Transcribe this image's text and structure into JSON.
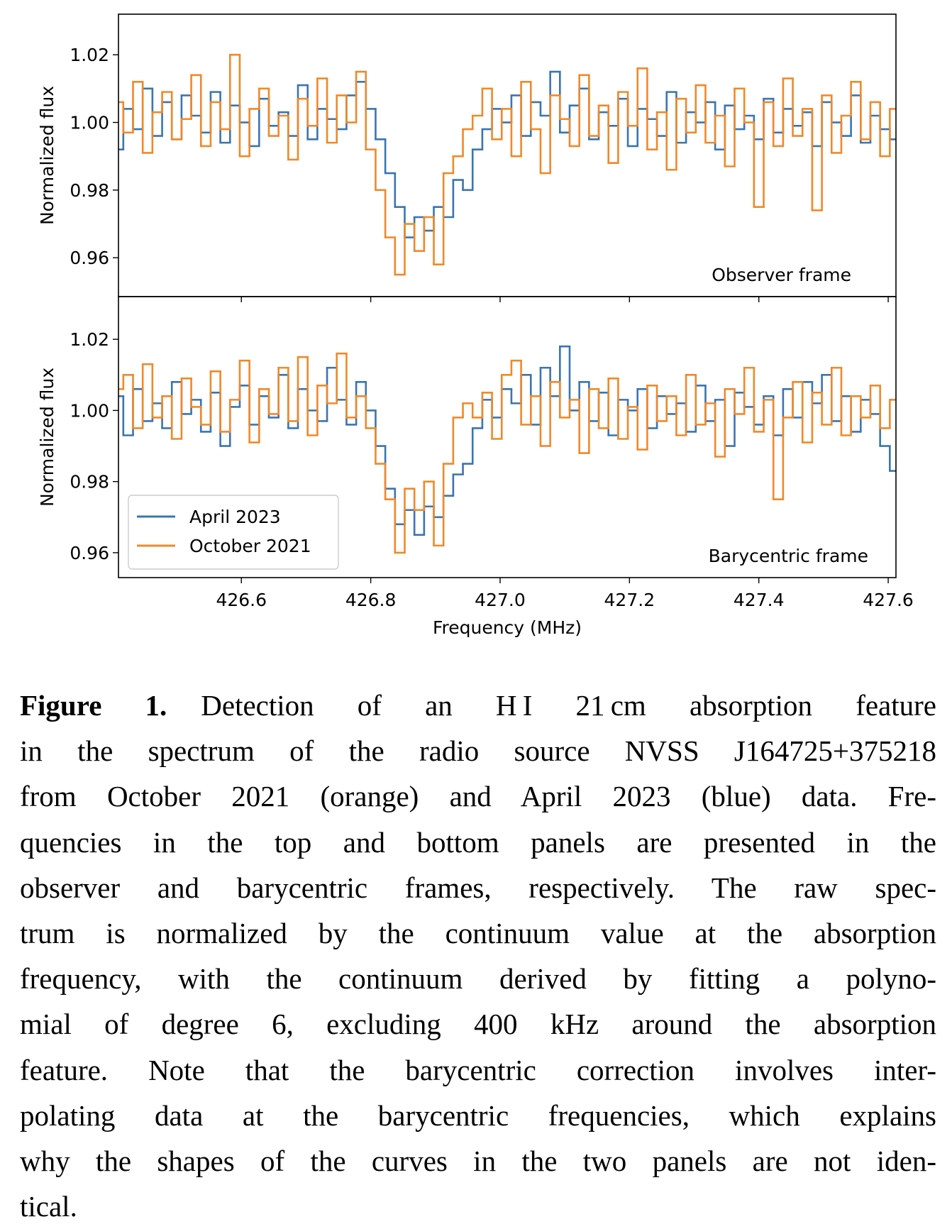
{
  "chart_data": [
    {
      "type": "line",
      "ylabel": "Normalized flux",
      "annotation": "Observer frame",
      "xlim": [
        426.41,
        427.612
      ],
      "ylim": [
        0.9485,
        1.032
      ],
      "xticks": [
        426.6,
        426.8,
        {
          "value": 427,
          "label": "427.0"
        },
        427.2,
        427.4,
        427.6
      ],
      "yticks": [
        0.96,
        0.98,
        {
          "value": 1,
          "label": "1.00"
        },
        1.02
      ],
      "x": [
        426.41,
        426.425,
        426.44,
        426.455,
        426.47,
        426.485,
        426.5,
        426.515,
        426.53,
        426.545,
        426.56,
        426.575,
        426.59,
        426.605,
        426.62,
        426.635,
        426.65,
        426.665,
        426.68,
        426.695,
        426.71,
        426.725,
        426.74,
        426.755,
        426.77,
        426.785,
        426.8,
        426.815,
        426.83,
        426.845,
        426.86,
        426.875,
        426.89,
        426.905,
        426.92,
        426.935,
        426.95,
        426.965,
        426.98,
        426.995,
        427.01,
        427.025,
        427.04,
        427.055,
        427.07,
        427.085,
        427.1,
        427.115,
        427.13,
        427.145,
        427.16,
        427.175,
        427.19,
        427.205,
        427.22,
        427.235,
        427.25,
        427.265,
        427.28,
        427.295,
        427.31,
        427.325,
        427.34,
        427.355,
        427.37,
        427.385,
        427.4,
        427.415,
        427.43,
        427.445,
        427.46,
        427.475,
        427.49,
        427.505,
        427.52,
        427.535,
        427.55,
        427.565,
        427.58,
        427.595,
        427.61
      ],
      "series": [
        {
          "color": "#3a75b0",
          "values": [
            0.992,
            1.004,
            0.998,
            1.01,
            0.996,
            1.006,
            0.995,
            1.008,
            1.002,
            0.997,
            1.009,
            0.994,
            1.005,
            1.0,
            0.993,
            1.007,
            0.999,
            1.003,
            0.996,
            1.011,
            0.995,
            1.004,
            1.001,
            0.998,
            1.008,
            1.012,
            1.004,
            0.995,
            0.985,
            0.975,
            0.966,
            0.972,
            0.968,
            0.975,
            0.972,
            0.983,
            0.98,
            0.992,
            0.998,
            1.004,
            1.0,
            1.008,
            0.996,
            1.006,
            1.002,
            1.015,
            0.997,
            1.005,
            1.01,
            0.995,
            1.003,
            0.999,
            1.007,
            0.993,
            1.004,
            1.001,
            0.996,
            1.009,
            0.994,
            1.003,
            1.0,
            1.006,
            0.992,
            1.005,
            0.998,
            1.002,
            0.995,
            1.007,
            0.997,
            1.004,
            0.999,
            1.003,
            0.993,
            1.006,
            1.0,
            0.996,
            1.008,
            0.994,
            1.002,
            0.998,
            0.995
          ]
        },
        {
          "color": "#f0892a",
          "values": [
            1.006,
            0.997,
            1.012,
            0.991,
            1.003,
            1.009,
            0.995,
            1.001,
            1.014,
            0.993,
            1.006,
            0.998,
            1.02,
            0.99,
            1.004,
            1.01,
            0.996,
            1.002,
            0.989,
            1.007,
            0.999,
            1.013,
            0.994,
            1.008,
            1.0,
            1.015,
            0.992,
            0.98,
            0.966,
            0.955,
            0.97,
            0.962,
            0.972,
            0.958,
            0.985,
            0.99,
            0.998,
            1.002,
            1.01,
            0.995,
            1.004,
            0.99,
            1.012,
            0.998,
            0.985,
            1.008,
            1.001,
            0.993,
            1.014,
            0.996,
            1.005,
            0.988,
            1.009,
            0.999,
            1.016,
            0.992,
            1.003,
            0.986,
            1.007,
            0.997,
            1.011,
            0.994,
            1.002,
            0.987,
            1.01,
            1.0,
            0.975,
            1.006,
            0.993,
            1.013,
            0.996,
            1.004,
            0.974,
            1.008,
            0.991,
            1.002,
            1.012,
            0.995,
            1.006,
            0.99,
            1.004
          ]
        }
      ]
    },
    {
      "type": "line",
      "ylabel": "Normalized flux",
      "xlabel": "Frequency (MHz)",
      "annotation": "Barycentric frame",
      "legend": "lower left",
      "xlim": [
        426.41,
        427.612
      ],
      "ylim": [
        0.953,
        1.032
      ],
      "xticks": [
        426.6,
        426.8,
        {
          "value": 427,
          "label": "427.0"
        },
        427.2,
        427.4,
        427.6
      ],
      "yticks": [
        0.96,
        0.98,
        {
          "value": 1,
          "label": "1.00"
        },
        1.02
      ],
      "x": [
        426.41,
        426.425,
        426.44,
        426.455,
        426.47,
        426.485,
        426.5,
        426.515,
        426.53,
        426.545,
        426.56,
        426.575,
        426.59,
        426.605,
        426.62,
        426.635,
        426.65,
        426.665,
        426.68,
        426.695,
        426.71,
        426.725,
        426.74,
        426.755,
        426.77,
        426.785,
        426.8,
        426.815,
        426.83,
        426.845,
        426.86,
        426.875,
        426.89,
        426.905,
        426.92,
        426.935,
        426.95,
        426.965,
        426.98,
        426.995,
        427.01,
        427.025,
        427.04,
        427.055,
        427.07,
        427.085,
        427.1,
        427.115,
        427.13,
        427.145,
        427.16,
        427.175,
        427.19,
        427.205,
        427.22,
        427.235,
        427.25,
        427.265,
        427.28,
        427.295,
        427.31,
        427.325,
        427.34,
        427.355,
        427.37,
        427.385,
        427.4,
        427.415,
        427.43,
        427.445,
        427.46,
        427.475,
        427.49,
        427.505,
        427.52,
        427.535,
        427.55,
        427.565,
        427.58,
        427.595,
        427.61
      ],
      "series": [
        {
          "name": "April 2023",
          "color": "#3a75b0",
          "values": [
            1.004,
            0.993,
            1.006,
            0.997,
            1.002,
            0.995,
            1.008,
            0.999,
            1.003,
            0.994,
            1.005,
            0.99,
            1.001,
            1.007,
            0.996,
            1.004,
            0.998,
            1.01,
            0.995,
            1.006,
            1.0,
            0.997,
            1.012,
            1.003,
            0.996,
            1.008,
            1.0,
            0.99,
            0.978,
            0.968,
            0.972,
            0.965,
            0.973,
            0.97,
            0.976,
            0.982,
            0.985,
            0.995,
            1.003,
            0.998,
            1.006,
            1.002,
            1.01,
            0.996,
            1.012,
            1.004,
            1.018,
            1.0,
            1.008,
            0.997,
            1.005,
            0.993,
            1.003,
            1.0,
            1.006,
            0.995,
            1.004,
            0.999,
            1.002,
            0.994,
            1.007,
            0.997,
            1.003,
            0.99,
            1.005,
            1.001,
            0.996,
            1.004,
            0.993,
            1.006,
            0.998,
            1.008,
            1.002,
            1.01,
            0.997,
            1.004,
            0.994,
            1.003,
            0.999,
            0.99,
            0.983
          ]
        },
        {
          "name": "October 2021",
          "color": "#f0892a",
          "values": [
            1.006,
            1.01,
            0.995,
            1.013,
            0.998,
            1.004,
            0.992,
            1.009,
            1.001,
            0.996,
            1.011,
            0.994,
            1.003,
            1.014,
            0.991,
            1.006,
            0.999,
            1.012,
            0.997,
            1.015,
            0.993,
            1.007,
            1.002,
            1.016,
            0.998,
            1.004,
            0.995,
            0.985,
            0.975,
            0.96,
            0.978,
            0.972,
            0.98,
            0.962,
            0.985,
            0.998,
            1.002,
            0.998,
            1.005,
            0.992,
            1.01,
            1.014,
            0.996,
            1.004,
            0.99,
            1.008,
            0.998,
            1.003,
            0.988,
            1.006,
            0.995,
            1.009,
            0.992,
            1.001,
            0.989,
            1.007,
            0.997,
            1.004,
            0.993,
            1.01,
            0.996,
            1.002,
            0.987,
            1.006,
            0.999,
            1.012,
            0.994,
            1.003,
            0.975,
            0.998,
            1.008,
            0.991,
            1.005,
            0.996,
            1.012,
            0.993,
            1.004,
            0.998,
            1.007,
            0.995,
            1.003
          ]
        }
      ]
    }
  ],
  "caption": {
    "label": "Figure 1.",
    "lines": [
      "Detection of an H I 21 cm absorption feature",
      "in the spectrum of the radio source NVSS J164725+375218",
      "from October 2021 (orange) and April 2023 (blue) data. Fre-",
      "quencies in the top and bottom panels are presented in the",
      "observer and barycentric frames, respectively. The raw spec-",
      "trum is normalized by the continuum value at the absorption",
      "frequency, with the continuum derived by fitting a polyno-",
      "mial of degree 6, excluding 400 kHz around the absorption",
      "feature. Note that the barycentric correction involves inter-",
      "polating data at the barycentric frequencies, which explains",
      "why the shapes of the curves in the two panels are not iden-",
      "tical."
    ]
  }
}
